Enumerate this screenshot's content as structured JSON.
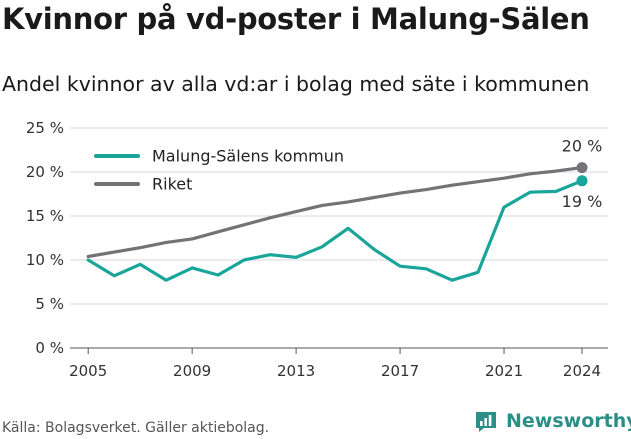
{
  "header": {
    "title": "Kvinnor på vd-poster i Malung-Sälen",
    "subtitle": "Andel kvinnor av alla vd:ar i bolag med säte i kommunen"
  },
  "footer": {
    "source": "Källa: Bolagsverket. Gäller aktiebolag."
  },
  "brand": {
    "name": "Newsworthy",
    "color": "#2c8f87"
  },
  "colors": {
    "municipality": "#1aa59a",
    "national": "#747277",
    "grid": "#d9d9d9"
  },
  "chart_data": {
    "type": "line",
    "title": "Kvinnor på vd-poster i Malung-Sälen",
    "subtitle": "Andel kvinnor av alla vd:ar i bolag med säte i kommunen",
    "x": [
      2005,
      2006,
      2007,
      2008,
      2009,
      2010,
      2011,
      2012,
      2013,
      2014,
      2015,
      2016,
      2017,
      2018,
      2019,
      2020,
      2021,
      2022,
      2023,
      2024
    ],
    "x_ticks": [
      "2005",
      "2009",
      "2013",
      "2017",
      "2021",
      "2024"
    ],
    "y_ticks": [
      "0 %",
      "5 %",
      "10 %",
      "15 %",
      "20 %",
      "25 %"
    ],
    "ylim": [
      0,
      25
    ],
    "grid": true,
    "legend": "top-left",
    "series": [
      {
        "name": "Malung-Sälens kommun",
        "color": "#1aa59a",
        "values": [
          10.0,
          8.2,
          9.5,
          7.7,
          9.1,
          8.3,
          10.0,
          10.6,
          10.3,
          11.5,
          13.6,
          11.2,
          9.3,
          9.0,
          7.7,
          8.6,
          16.0,
          17.7,
          17.8,
          19.0
        ],
        "end_label": "19 %"
      },
      {
        "name": "Riket",
        "color": "#747277",
        "values": [
          10.4,
          10.9,
          11.4,
          12.0,
          12.4,
          13.2,
          14.0,
          14.8,
          15.5,
          16.2,
          16.6,
          17.1,
          17.6,
          18.0,
          18.5,
          18.9,
          19.3,
          19.8,
          20.1,
          20.5
        ],
        "end_label": "20 %"
      }
    ]
  }
}
